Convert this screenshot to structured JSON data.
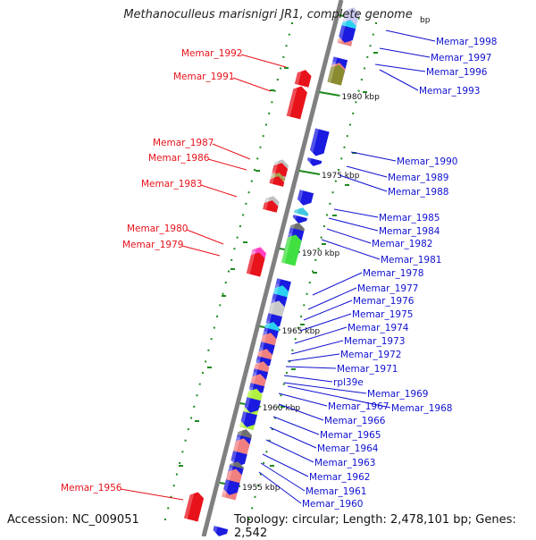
{
  "title": "Methanoculleus marisnigri JR1, complete genome",
  "footer": {
    "accession": "Accession: NC_009051",
    "summary": "Topology: circular; Length: 2,478,101 bp; Genes: 2,542"
  },
  "colors": {
    "left_label": "#e8121b",
    "right_label": "#1010d0",
    "backbone": "#808080",
    "tick": "#1e8a1e"
  },
  "scale_labels": [
    "bp",
    "1980 kbp",
    "1975 kbp",
    "1970 kbp",
    "1965 kbp",
    "1960 kbp",
    "1955 kbp"
  ],
  "left_genes": [
    "Memar_1992",
    "Memar_1991",
    "Memar_1987",
    "Memar_1986",
    "Memar_1983",
    "Memar_1980",
    "Memar_1979",
    "Memar_1956"
  ],
  "right_genes": [
    "Memar_1998",
    "Memar_1997",
    "Memar_1996",
    "Memar_1993",
    "Memar_1990",
    "Memar_1989",
    "Memar_1988",
    "Memar_1985",
    "Memar_1984",
    "Memar_1982",
    "Memar_1981",
    "Memar_1978",
    "Memar_1977",
    "Memar_1976",
    "Memar_1975",
    "Memar_1974",
    "Memar_1973",
    "Memar_1972",
    "Memar_1971",
    "rpl39e",
    "Memar_1969",
    "Memar_1967",
    "Memar_1968",
    "Memar_1966",
    "Memar_1965",
    "Memar_1964",
    "Memar_1963",
    "Memar_1962",
    "Memar_1961",
    "Memar_1960"
  ]
}
